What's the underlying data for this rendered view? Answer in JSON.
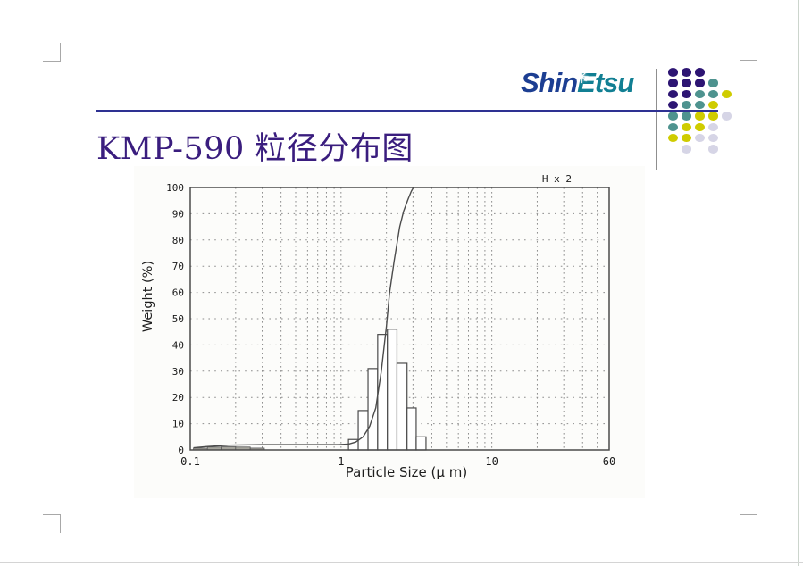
{
  "page": {
    "title": "KMP-590 粒径分布图",
    "title_color": "#3a1d7e",
    "background": "#ffffff"
  },
  "header": {
    "logo": {
      "part1": "Shin",
      "part2": "Etsu",
      "part1_color": "#1c3e92",
      "part2_color": "#117f93",
      "sparkle_icon": "✳"
    },
    "rule_color": "#2e3192",
    "divider_color": "#8f8f8f",
    "dot_matrix": {
      "palette": {
        "p": "#2d1573",
        "t": "#4e938f",
        "y": "#cfcc00",
        "g": "#d6d5e6"
      },
      "rows": [
        [
          "p",
          "p",
          "p",
          "",
          ""
        ],
        [
          "p",
          "p",
          "p",
          "t",
          ""
        ],
        [
          "p",
          "p",
          "t",
          "t",
          "y"
        ],
        [
          "p",
          "t",
          "t",
          "y",
          ""
        ],
        [
          "t",
          "t",
          "y",
          "y",
          "g"
        ],
        [
          "t",
          "y",
          "y",
          "g",
          ""
        ],
        [
          "y",
          "y",
          "g",
          "g",
          ""
        ],
        [
          "",
          "g",
          "",
          "g",
          ""
        ]
      ]
    }
  },
  "chart_data": {
    "type": "bar",
    "subtype": "histogram-with-cumulative-line",
    "title": "",
    "annotation": "H x 2",
    "xlabel": "Particle Size  (μ m)",
    "ylabel": "Weight  (%)",
    "x_scale": "log",
    "xlim": [
      0.1,
      60
    ],
    "ylim": [
      0,
      100
    ],
    "x_tick_labels": [
      {
        "value": 0.1,
        "label": "0.1"
      },
      {
        "value": 1,
        "label": "1"
      },
      {
        "value": 10,
        "label": "10"
      },
      {
        "value": 60,
        "label": "60"
      }
    ],
    "y_ticks": [
      0,
      10,
      20,
      30,
      40,
      50,
      60,
      70,
      80,
      90,
      100
    ],
    "y_gridlines": [
      10,
      20,
      30,
      40,
      50,
      60,
      70,
      80,
      90
    ],
    "x_gridlines": [
      0.2,
      0.3,
      0.4,
      0.5,
      0.6,
      0.7,
      0.8,
      0.9,
      1,
      2,
      3,
      4,
      5,
      6,
      7,
      8,
      9,
      10,
      20,
      30,
      40,
      50
    ],
    "grid": true,
    "frame_color": "#4b4b4b",
    "grid_color": "#8c8c8c",
    "bars": {
      "note": "plotted heights are weight% x 2 per 'H x 2' scale note",
      "bin_edges_um": [
        1.12,
        1.3,
        1.51,
        1.75,
        2.03,
        2.35,
        2.74,
        3.15,
        3.66
      ],
      "heights_pct": [
        4,
        15,
        31,
        44,
        46,
        33,
        16,
        5
      ]
    },
    "fine_bars": {
      "bin_edges_um": [
        0.105,
        0.13,
        0.16,
        0.2,
        0.25,
        0.31
      ],
      "heights_pct": [
        0.7,
        1.1,
        1.2,
        1.1,
        0.7
      ]
    },
    "cumulative": {
      "points": [
        [
          0.105,
          0.8
        ],
        [
          0.13,
          1.3
        ],
        [
          0.18,
          1.8
        ],
        [
          0.3,
          2
        ],
        [
          0.6,
          2
        ],
        [
          0.95,
          2
        ],
        [
          1.12,
          2.2
        ],
        [
          1.25,
          3
        ],
        [
          1.4,
          5
        ],
        [
          1.55,
          9
        ],
        [
          1.7,
          16
        ],
        [
          1.85,
          30
        ],
        [
          2.0,
          47
        ],
        [
          2.1,
          60
        ],
        [
          2.25,
          72
        ],
        [
          2.45,
          85
        ],
        [
          2.6,
          91
        ],
        [
          2.78,
          95.5
        ],
        [
          2.92,
          98.5
        ],
        [
          3.02,
          100
        ],
        [
          3.06,
          100
        ]
      ],
      "median_um": 2.0
    }
  }
}
